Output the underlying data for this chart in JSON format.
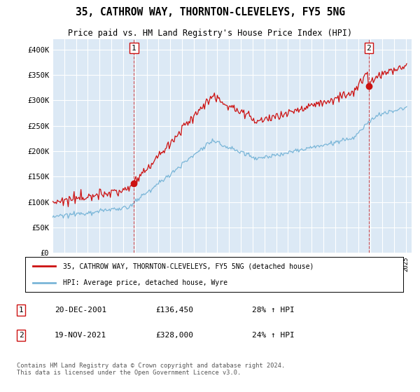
{
  "title": "35, CATHROW WAY, THORNTON-CLEVELEYS, FY5 5NG",
  "subtitle": "Price paid vs. HM Land Registry's House Price Index (HPI)",
  "legend_line1": "35, CATHROW WAY, THORNTON-CLEVELEYS, FY5 5NG (detached house)",
  "legend_line2": "HPI: Average price, detached house, Wyre",
  "annotation1_date": "20-DEC-2001",
  "annotation1_price": "£136,450",
  "annotation1_hpi": "28% ↑ HPI",
  "annotation2_date": "19-NOV-2021",
  "annotation2_price": "£328,000",
  "annotation2_hpi": "24% ↑ HPI",
  "footer": "Contains HM Land Registry data © Crown copyright and database right 2024.\nThis data is licensed under the Open Government Licence v3.0.",
  "hpi_color": "#7ab6d8",
  "price_color": "#cc1111",
  "plot_bg": "#dce9f5",
  "ann_box_color": "#cc1111",
  "ylim": [
    0,
    420000
  ],
  "yticks": [
    0,
    50000,
    100000,
    150000,
    200000,
    250000,
    300000,
    350000,
    400000
  ],
  "sale1_year": 2001.92,
  "sale1_price": 136450,
  "sale2_year": 2021.87,
  "sale2_price": 328000
}
